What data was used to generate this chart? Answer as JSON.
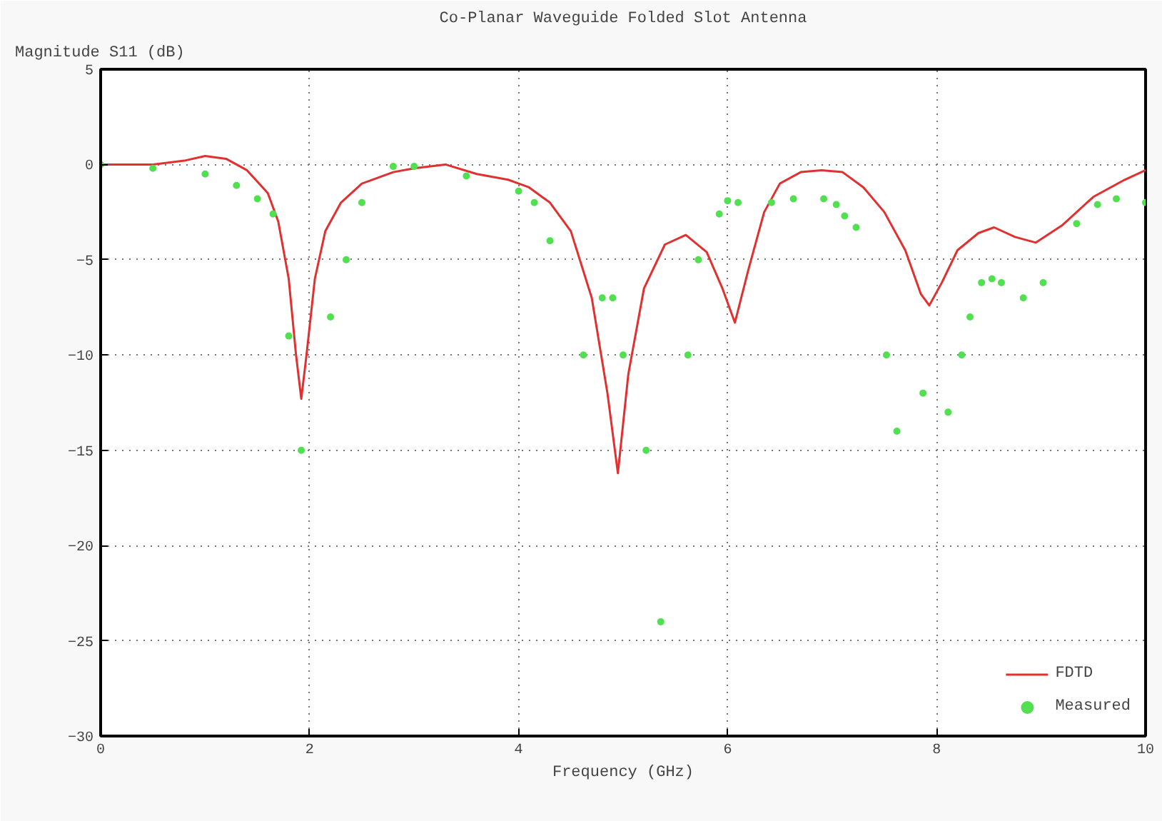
{
  "chart_data": {
    "type": "line",
    "title": "Co-Planar Waveguide Folded Slot Antenna",
    "xlabel": "Frequency (GHz)",
    "ylabel": "Magnitude S11 (dB)",
    "xlim": [
      0,
      10
    ],
    "ylim": [
      -30,
      5
    ],
    "xticks": [
      0,
      2,
      4,
      6,
      8,
      10
    ],
    "yticks": [
      -30,
      -25,
      -20,
      -15,
      -10,
      -5,
      0,
      5
    ],
    "grid": true,
    "legend": "bottom right",
    "series": [
      {
        "name": "FDTD",
        "color": "#e03030",
        "x": [
          0,
          0.5,
          0.8,
          1.0,
          1.2,
          1.4,
          1.6,
          1.7,
          1.8,
          1.87,
          1.92,
          1.97,
          2.05,
          2.15,
          2.3,
          2.5,
          2.8,
          3.0,
          3.3,
          3.6,
          3.9,
          4.1,
          4.3,
          4.5,
          4.7,
          4.85,
          4.95,
          5.05,
          5.2,
          5.4,
          5.6,
          5.8,
          5.95,
          6.07,
          6.2,
          6.35,
          6.5,
          6.7,
          6.9,
          7.1,
          7.3,
          7.5,
          7.7,
          7.85,
          7.93,
          8.05,
          8.2,
          8.4,
          8.55,
          8.75,
          8.95,
          9.2,
          9.5,
          9.8,
          10
        ],
        "values": [
          0,
          0,
          0.2,
          0.45,
          0.3,
          -0.3,
          -1.5,
          -3,
          -6,
          -10,
          -12.3,
          -10,
          -6,
          -3.5,
          -2,
          -1,
          -0.4,
          -0.2,
          0,
          -0.5,
          -0.8,
          -1.2,
          -2,
          -3.5,
          -7,
          -12,
          -16.2,
          -11,
          -6.5,
          -4.2,
          -3.7,
          -4.6,
          -6.5,
          -8.3,
          -5.5,
          -2.5,
          -1,
          -0.4,
          -0.3,
          -0.4,
          -1.2,
          -2.5,
          -4.5,
          -6.8,
          -7.4,
          -6.2,
          -4.5,
          -3.6,
          -3.3,
          -3.8,
          -4.1,
          -3.2,
          -1.7,
          -0.8,
          -0.3
        ],
        "line_style": "solid"
      },
      {
        "name": "Measured",
        "type": "scatter",
        "color": "#50e050",
        "marker": "circle",
        "x": [
          0,
          0.5,
          1.0,
          1.3,
          1.5,
          1.65,
          1.8,
          1.92,
          2.2,
          2.35,
          2.5,
          2.8,
          3.0,
          3.5,
          4.0,
          4.15,
          4.3,
          4.62,
          4.8,
          4.9,
          5.0,
          5.22,
          5.36,
          5.62,
          5.72,
          5.92,
          6.0,
          6.1,
          6.42,
          6.63,
          6.92,
          7.04,
          7.12,
          7.23,
          7.52,
          7.62,
          7.87,
          8.11,
          8.24,
          8.32,
          8.43,
          8.53,
          8.62,
          8.83,
          9.02,
          9.34,
          9.54,
          9.72,
          10
        ],
        "values": [
          0,
          -0.2,
          -0.5,
          -1.1,
          -1.8,
          -2.6,
          -9,
          -15,
          -8,
          -5,
          -2,
          -0.1,
          -0.1,
          -0.6,
          -1.4,
          -2,
          -4,
          -10,
          -7,
          -7,
          -10,
          -15,
          -24,
          -10,
          -5,
          -2.6,
          -1.9,
          -2,
          -2,
          -1.8,
          -1.8,
          -2.1,
          -2.7,
          -3.3,
          -10,
          -14,
          -12,
          -13,
          -10,
          -8,
          -6.2,
          -6,
          -6.2,
          -7,
          -6.2,
          -3.1,
          -2.1,
          -1.8,
          -2
        ]
      }
    ]
  }
}
